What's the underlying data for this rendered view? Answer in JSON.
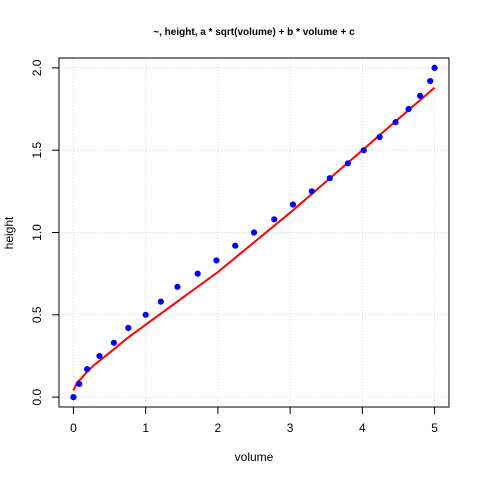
{
  "chart_data": {
    "type": "scatter",
    "title": "~, height, a * sqrt(volume) + b * volume + c",
    "xlabel": "volume",
    "ylabel": "height",
    "xlim": [
      -0.2,
      5.2
    ],
    "ylim": [
      -0.06,
      2.06
    ],
    "x_ticks": [
      "0",
      "1",
      "2",
      "3",
      "4",
      "5"
    ],
    "y_ticks": [
      "0.0",
      "0.5",
      "1.0",
      "1.5",
      "2.0"
    ],
    "grid": true,
    "colors": {
      "points": "#0000ff",
      "fit_line": "#ff0000",
      "grid": "#d3d3d3",
      "axis": "#000000"
    },
    "series": [
      {
        "type": "points",
        "x": [
          0.0,
          0.08,
          0.19,
          0.36,
          0.56,
          0.76,
          1.0,
          1.21,
          1.44,
          1.72,
          1.98,
          2.24,
          2.5,
          2.78,
          3.04,
          3.3,
          3.55,
          3.8,
          4.02,
          4.24,
          4.46,
          4.64,
          4.8,
          4.94,
          5.0
        ],
        "y": [
          0.0,
          0.08,
          0.17,
          0.25,
          0.33,
          0.42,
          0.5,
          0.58,
          0.67,
          0.75,
          0.83,
          0.92,
          1.0,
          1.08,
          1.17,
          1.25,
          1.33,
          1.42,
          1.5,
          1.58,
          1.67,
          1.75,
          1.83,
          1.92,
          2.0
        ]
      },
      {
        "type": "line",
        "x": [
          0.0,
          0.05,
          0.1,
          0.2,
          0.3,
          0.5,
          0.75,
          1.0,
          1.5,
          2.0,
          2.5,
          3.0,
          3.5,
          4.0,
          4.5,
          5.0
        ],
        "y": [
          0.04,
          0.09,
          0.11,
          0.16,
          0.2,
          0.27,
          0.36,
          0.44,
          0.6,
          0.76,
          0.94,
          1.12,
          1.31,
          1.5,
          1.69,
          1.88
        ]
      }
    ]
  }
}
